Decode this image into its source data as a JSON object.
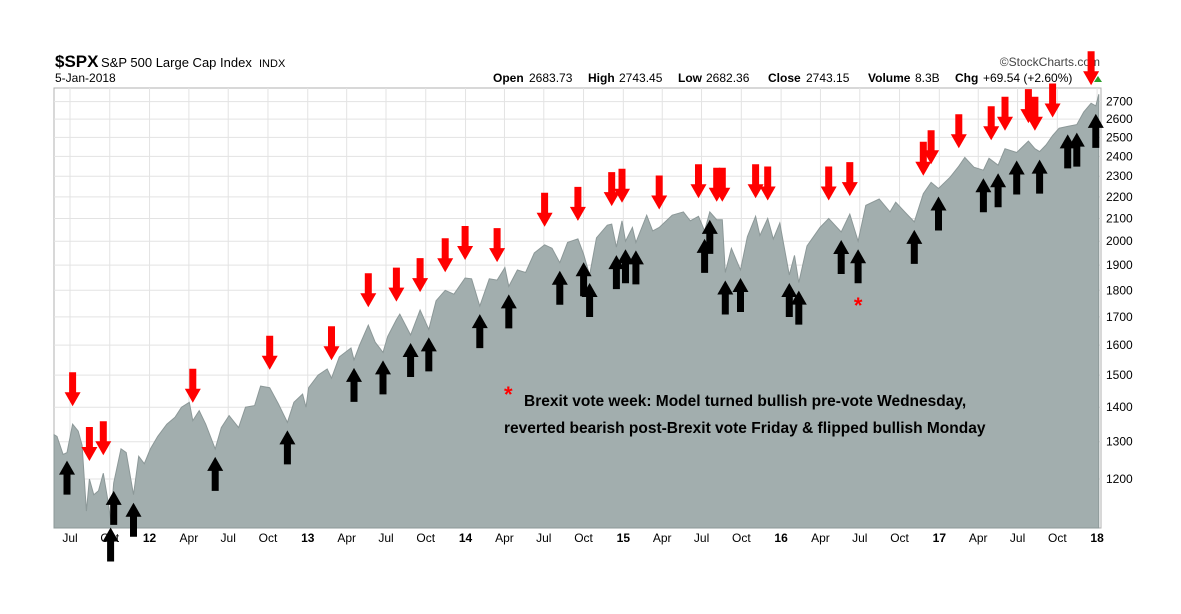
{
  "header": {
    "symbol": "$SPX",
    "name": "S&P 500 Large Cap Index",
    "exchange": "INDX",
    "date": "5-Jan-2018",
    "brand": "©StockCharts.com",
    "open_label": "Open",
    "open_value": "2683.73",
    "high_label": "High",
    "high_value": "2743.45",
    "low_label": "Low",
    "low_value": "2682.36",
    "close_label": "Close",
    "close_value": "2743.15",
    "volume_label": "Volume",
    "volume_value": "8.3B",
    "chg_label": "Chg",
    "chg_value": "+69.54 (+2.60%)"
  },
  "annotation": {
    "marker": "*",
    "line1": "Brexit vote week: Model turned bullish pre-vote Wednesday,",
    "line2": "reverted bearish post-Brexit vote Friday & flipped bullish Monday"
  },
  "colors": {
    "area_fill": "#a2aeae",
    "area_stroke": "#8c9898",
    "buy_arrow": "#000000",
    "sell_arrow": "#ff0000",
    "brexit_marker": "#ff0000",
    "grid": "#e3e3e3"
  },
  "chart_data": {
    "type": "area",
    "title": "$SPX S&P 500 Large Cap Index",
    "xlabel": "",
    "ylabel": "",
    "y_scale": "log",
    "ylim": [
      1080,
      2780
    ],
    "xlim": [
      "2011-05-25",
      "2018-01-10"
    ],
    "grid": true,
    "y_ticks": [
      1200,
      1300,
      1400,
      1500,
      1600,
      1700,
      1800,
      1900,
      2000,
      2100,
      2200,
      2300,
      2400,
      2500,
      2600,
      2700
    ],
    "x_ticks": [
      {
        "date": "2011-07-01",
        "label": "Jul",
        "bold": false
      },
      {
        "date": "2011-10-01",
        "label": "Oct",
        "bold": false
      },
      {
        "date": "2012-01-01",
        "label": "12",
        "bold": true
      },
      {
        "date": "2012-04-01",
        "label": "Apr",
        "bold": false
      },
      {
        "date": "2012-07-01",
        "label": "Jul",
        "bold": false
      },
      {
        "date": "2012-10-01",
        "label": "Oct",
        "bold": false
      },
      {
        "date": "2013-01-01",
        "label": "13",
        "bold": true
      },
      {
        "date": "2013-04-01",
        "label": "Apr",
        "bold": false
      },
      {
        "date": "2013-07-01",
        "label": "Jul",
        "bold": false
      },
      {
        "date": "2013-10-01",
        "label": "Oct",
        "bold": false
      },
      {
        "date": "2014-01-01",
        "label": "14",
        "bold": true
      },
      {
        "date": "2014-04-01",
        "label": "Apr",
        "bold": false
      },
      {
        "date": "2014-07-01",
        "label": "Jul",
        "bold": false
      },
      {
        "date": "2014-10-01",
        "label": "Oct",
        "bold": false
      },
      {
        "date": "2015-01-01",
        "label": "15",
        "bold": true
      },
      {
        "date": "2015-04-01",
        "label": "Apr",
        "bold": false
      },
      {
        "date": "2015-07-01",
        "label": "Jul",
        "bold": false
      },
      {
        "date": "2015-10-01",
        "label": "Oct",
        "bold": false
      },
      {
        "date": "2016-01-01",
        "label": "16",
        "bold": true
      },
      {
        "date": "2016-04-01",
        "label": "Apr",
        "bold": false
      },
      {
        "date": "2016-07-01",
        "label": "Jul",
        "bold": false
      },
      {
        "date": "2016-10-01",
        "label": "Oct",
        "bold": false
      },
      {
        "date": "2017-01-01",
        "label": "17",
        "bold": true
      },
      {
        "date": "2017-04-01",
        "label": "Apr",
        "bold": false
      },
      {
        "date": "2017-07-01",
        "label": "Jul",
        "bold": false
      },
      {
        "date": "2017-10-01",
        "label": "Oct",
        "bold": false
      },
      {
        "date": "2018-01-01",
        "label": "18",
        "bold": true
      }
    ],
    "series": [
      {
        "values": [
          [
            "2011-05-25",
            1320
          ],
          [
            "2011-06-01",
            1315
          ],
          [
            "2011-06-15",
            1265
          ],
          [
            "2011-06-24",
            1270
          ],
          [
            "2011-07-07",
            1350
          ],
          [
            "2011-07-20",
            1330
          ],
          [
            "2011-07-29",
            1290
          ],
          [
            "2011-08-08",
            1120
          ],
          [
            "2011-08-15",
            1200
          ],
          [
            "2011-08-25",
            1160
          ],
          [
            "2011-09-05",
            1170
          ],
          [
            "2011-09-16",
            1215
          ],
          [
            "2011-09-26",
            1150
          ],
          [
            "2011-10-03",
            1100
          ],
          [
            "2011-10-10",
            1190
          ],
          [
            "2011-10-27",
            1280
          ],
          [
            "2011-11-08",
            1270
          ],
          [
            "2011-11-25",
            1160
          ],
          [
            "2011-12-07",
            1260
          ],
          [
            "2011-12-20",
            1240
          ],
          [
            "2012-01-03",
            1280
          ],
          [
            "2012-01-20",
            1315
          ],
          [
            "2012-02-10",
            1350
          ],
          [
            "2012-02-29",
            1370
          ],
          [
            "2012-03-15",
            1400
          ],
          [
            "2012-04-02",
            1415
          ],
          [
            "2012-04-10",
            1360
          ],
          [
            "2012-04-25",
            1390
          ],
          [
            "2012-05-10",
            1350
          ],
          [
            "2012-06-01",
            1280
          ],
          [
            "2012-06-15",
            1340
          ],
          [
            "2012-07-03",
            1375
          ],
          [
            "2012-07-25",
            1340
          ],
          [
            "2012-08-10",
            1400
          ],
          [
            "2012-08-31",
            1405
          ],
          [
            "2012-09-14",
            1465
          ],
          [
            "2012-10-05",
            1460
          ],
          [
            "2012-10-25",
            1410
          ],
          [
            "2012-11-15",
            1355
          ],
          [
            "2012-11-30",
            1415
          ],
          [
            "2012-12-20",
            1440
          ],
          [
            "2012-12-28",
            1400
          ],
          [
            "2013-01-03",
            1460
          ],
          [
            "2013-01-25",
            1500
          ],
          [
            "2013-02-15",
            1520
          ],
          [
            "2013-02-25",
            1490
          ],
          [
            "2013-03-15",
            1560
          ],
          [
            "2013-04-11",
            1590
          ],
          [
            "2013-04-18",
            1550
          ],
          [
            "2013-05-01",
            1600
          ],
          [
            "2013-05-21",
            1670
          ],
          [
            "2013-06-06",
            1610
          ],
          [
            "2013-06-24",
            1575
          ],
          [
            "2013-07-05",
            1630
          ],
          [
            "2013-07-25",
            1690
          ],
          [
            "2013-08-02",
            1710
          ],
          [
            "2013-08-27",
            1635
          ],
          [
            "2013-09-18",
            1725
          ],
          [
            "2013-10-08",
            1655
          ],
          [
            "2013-10-25",
            1760
          ],
          [
            "2013-11-15",
            1800
          ],
          [
            "2013-12-05",
            1785
          ],
          [
            "2013-12-31",
            1848
          ],
          [
            "2014-01-15",
            1845
          ],
          [
            "2014-02-03",
            1740
          ],
          [
            "2014-02-25",
            1845
          ],
          [
            "2014-03-15",
            1840
          ],
          [
            "2014-04-02",
            1890
          ],
          [
            "2014-04-11",
            1815
          ],
          [
            "2014-05-01",
            1880
          ],
          [
            "2014-05-20",
            1870
          ],
          [
            "2014-06-09",
            1950
          ],
          [
            "2014-07-03",
            1985
          ],
          [
            "2014-07-20",
            1970
          ],
          [
            "2014-08-07",
            1910
          ],
          [
            "2014-08-25",
            1995
          ],
          [
            "2014-09-18",
            2010
          ],
          [
            "2014-10-01",
            1945
          ],
          [
            "2014-10-15",
            1860
          ],
          [
            "2014-10-31",
            2015
          ],
          [
            "2014-11-25",
            2070
          ],
          [
            "2014-12-05",
            2075
          ],
          [
            "2014-12-16",
            1975
          ],
          [
            "2014-12-29",
            2090
          ],
          [
            "2015-01-06",
            2000
          ],
          [
            "2015-01-22",
            2060
          ],
          [
            "2015-01-30",
            1995
          ],
          [
            "2015-02-24",
            2115
          ],
          [
            "2015-03-10",
            2045
          ],
          [
            "2015-03-25",
            2060
          ],
          [
            "2015-04-24",
            2115
          ],
          [
            "2015-05-20",
            2130
          ],
          [
            "2015-06-05",
            2090
          ],
          [
            "2015-06-24",
            2110
          ],
          [
            "2015-07-08",
            2045
          ],
          [
            "2015-07-20",
            2130
          ],
          [
            "2015-08-05",
            2095
          ],
          [
            "2015-08-18",
            2095
          ],
          [
            "2015-08-25",
            1870
          ],
          [
            "2015-09-08",
            1970
          ],
          [
            "2015-09-29",
            1880
          ],
          [
            "2015-10-15",
            2020
          ],
          [
            "2015-11-03",
            2110
          ],
          [
            "2015-11-13",
            2025
          ],
          [
            "2015-12-01",
            2100
          ],
          [
            "2015-12-14",
            2010
          ],
          [
            "2015-12-29",
            2080
          ],
          [
            "2016-01-20",
            1860
          ],
          [
            "2016-02-01",
            1940
          ],
          [
            "2016-02-11",
            1830
          ],
          [
            "2016-03-01",
            1980
          ],
          [
            "2016-03-31",
            2060
          ],
          [
            "2016-04-20",
            2100
          ],
          [
            "2016-05-19",
            2040
          ],
          [
            "2016-06-08",
            2120
          ],
          [
            "2016-06-27",
            2000
          ],
          [
            "2016-07-15",
            2160
          ],
          [
            "2016-08-15",
            2190
          ],
          [
            "2016-09-09",
            2130
          ],
          [
            "2016-09-22",
            2175
          ],
          [
            "2016-10-13",
            2130
          ],
          [
            "2016-11-04",
            2085
          ],
          [
            "2016-11-25",
            2215
          ],
          [
            "2016-12-13",
            2270
          ],
          [
            "2016-12-30",
            2240
          ],
          [
            "2017-01-26",
            2295
          ],
          [
            "2017-02-15",
            2350
          ],
          [
            "2017-03-01",
            2395
          ],
          [
            "2017-03-22",
            2345
          ],
          [
            "2017-04-13",
            2330
          ],
          [
            "2017-04-26",
            2390
          ],
          [
            "2017-05-17",
            2355
          ],
          [
            "2017-06-02",
            2440
          ],
          [
            "2017-06-29",
            2420
          ],
          [
            "2017-07-26",
            2480
          ],
          [
            "2017-08-10",
            2440
          ],
          [
            "2017-08-21",
            2425
          ],
          [
            "2017-09-05",
            2460
          ],
          [
            "2017-09-20",
            2510
          ],
          [
            "2017-10-05",
            2550
          ],
          [
            "2017-10-25",
            2560
          ],
          [
            "2017-11-15",
            2570
          ],
          [
            "2017-12-01",
            2640
          ],
          [
            "2017-12-18",
            2690
          ],
          [
            "2017-12-29",
            2675
          ],
          [
            "2018-01-05",
            2743
          ]
        ]
      }
    ],
    "buy_signals": [
      "2011-06-24",
      "2011-10-03",
      "2011-10-10",
      "2011-11-25",
      "2012-06-01",
      "2012-11-15",
      "2013-04-18",
      "2013-06-24",
      "2013-08-27",
      "2013-10-08",
      "2014-02-03",
      "2014-04-11",
      "2014-08-07",
      "2014-10-01",
      "2014-10-15",
      "2014-12-16",
      "2015-01-06",
      "2015-01-30",
      "2015-07-08",
      "2015-07-20",
      "2015-08-25",
      "2015-09-29",
      "2016-01-20",
      "2016-02-11",
      "2016-05-19",
      "2016-06-27",
      "2016-11-04",
      "2016-12-30",
      "2017-04-13",
      "2017-05-17",
      "2017-06-29",
      "2017-08-21",
      "2017-10-25",
      "2017-11-15",
      "2017-12-29"
    ],
    "sell_signals": [
      "2011-07-07",
      "2011-08-15",
      "2011-09-16",
      "2012-04-10",
      "2012-10-05",
      "2013-02-25",
      "2013-05-21",
      "2013-07-25",
      "2013-09-18",
      "2013-11-15",
      "2013-12-31",
      "2014-03-15",
      "2014-07-03",
      "2014-09-18",
      "2014-12-05",
      "2014-12-29",
      "2015-03-25",
      "2015-06-24",
      "2015-08-05",
      "2015-08-18",
      "2015-11-03",
      "2015-12-01",
      "2016-04-20",
      "2016-06-08",
      "2016-11-25",
      "2016-12-13",
      "2017-02-15",
      "2017-05-01",
      "2017-06-02",
      "2017-07-26",
      "2017-08-10",
      "2017-09-20",
      "2017-12-18"
    ],
    "annotation_marker_date": "2016-06-27"
  }
}
